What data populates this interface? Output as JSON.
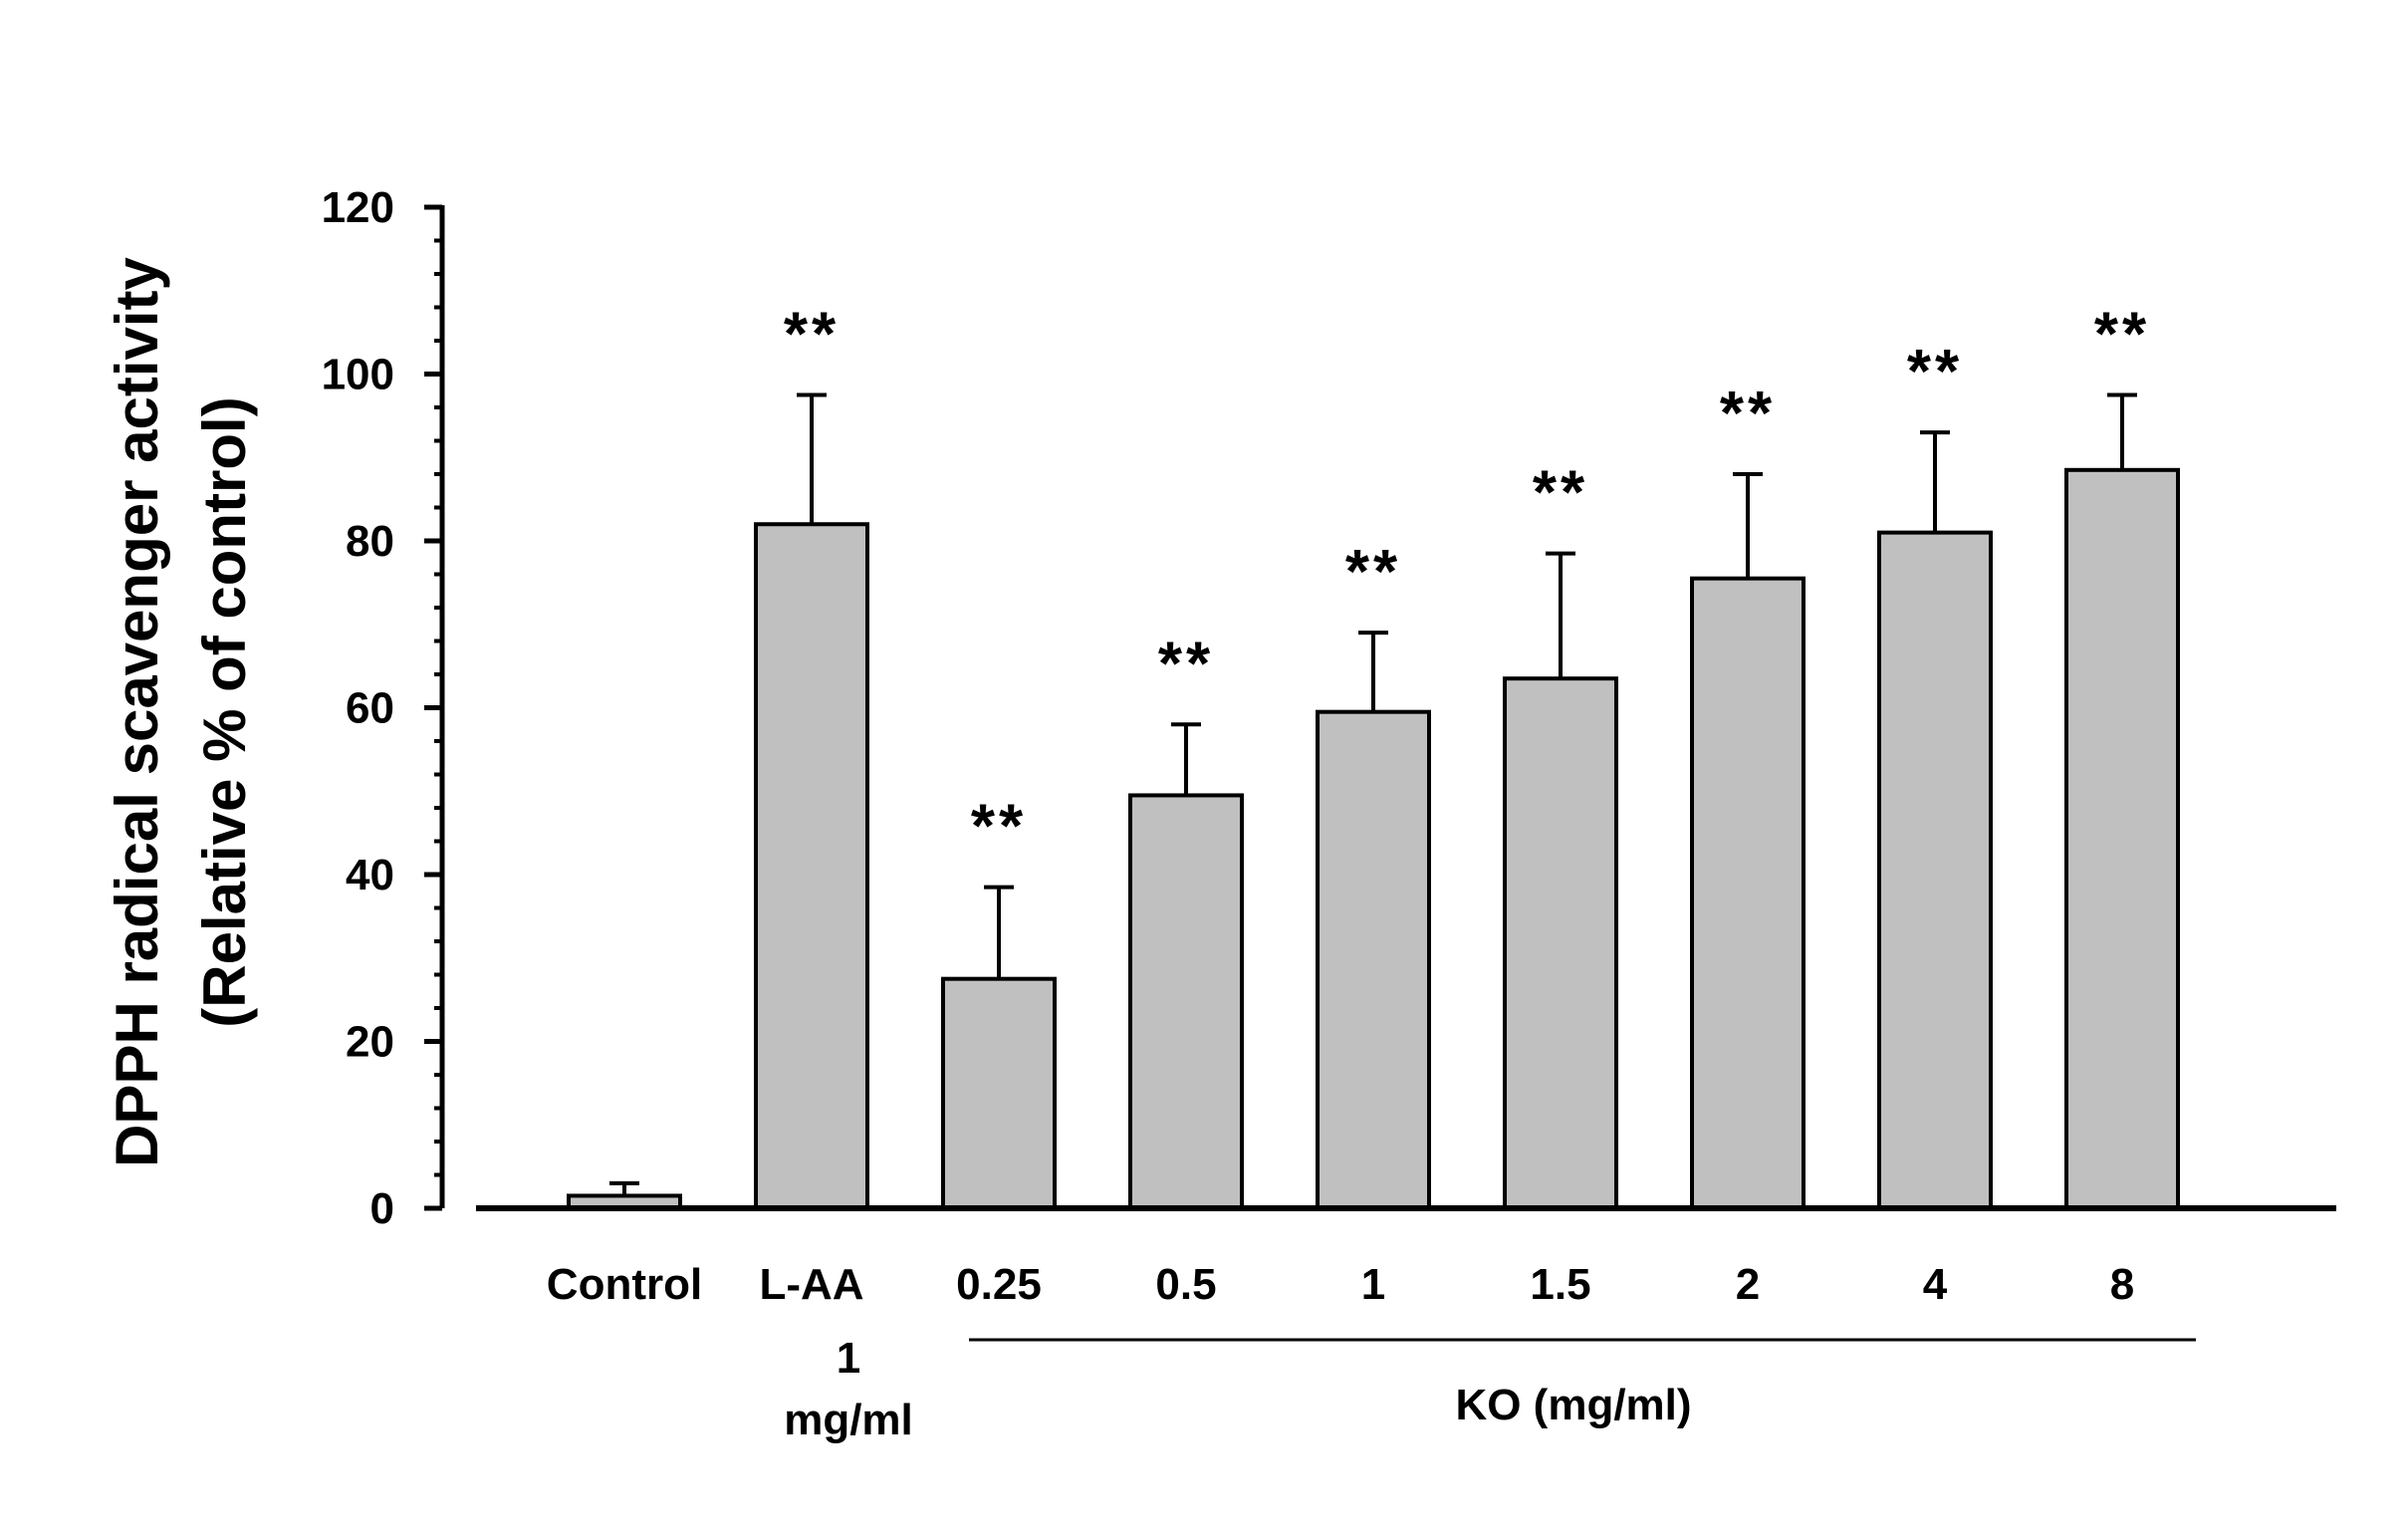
{
  "chart_data": {
    "type": "bar",
    "title": "",
    "ylabel_line1": "DPPH radical scavenger activity",
    "ylabel_line2": "(Relative % of control)",
    "xlabel": "",
    "ylim": [
      0,
      120
    ],
    "yticks": [
      "0",
      "20",
      "40",
      "60",
      "80",
      "100",
      "120"
    ],
    "categories": [
      "Control",
      "L-AA",
      "0.25",
      "0.5",
      "1",
      "1.5",
      "2",
      "4",
      "8"
    ],
    "values": [
      1.5,
      82,
      27.5,
      49.5,
      59.5,
      63.5,
      75.5,
      81,
      88.5
    ],
    "errors": [
      1.5,
      15.5,
      11,
      8.5,
      9.5,
      15,
      12.5,
      12,
      9
    ],
    "significance": [
      "",
      "**",
      "**",
      "**",
      "**",
      "**",
      "**",
      "**",
      "**"
    ],
    "sub_label_line1": "1",
    "sub_label_line2": "mg/ml",
    "group_label": "KO (mg/ml)",
    "bar_color": "#c0c0c0"
  }
}
